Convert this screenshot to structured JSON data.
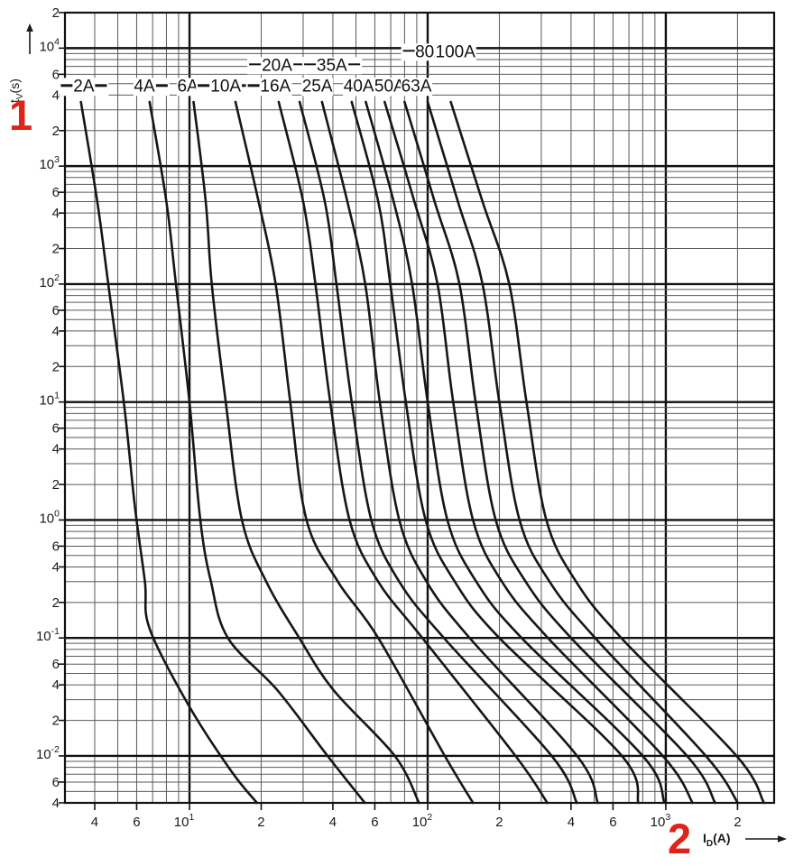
{
  "figure": {
    "marker_1": "1",
    "marker_2": "2",
    "y_axis_title": {
      "base": "t",
      "sub": "V",
      "unit": "(s)"
    },
    "x_axis_title": {
      "base": "I",
      "sub": "D",
      "unit": "(A)"
    },
    "colors": {
      "accent_red": "#df2318",
      "curve": "#161616",
      "grid_major": "#111111",
      "grid_minor": "#5a5a5a",
      "text": "#1a1a1a",
      "background": "#ffffff"
    }
  },
  "chart_data": {
    "type": "line",
    "xlabel": "I_D (A)",
    "ylabel": "t_V (s)",
    "x_scale": "log",
    "y_scale": "log",
    "xlim": [
      3,
      2850
    ],
    "ylim": [
      0.004,
      20000
    ],
    "grid": "full log-log grid, minor lines at mantissas 2-9, heavy lines at powers of 10",
    "legend_position": "labels at top of each curve",
    "x_ticks": [
      {
        "v": 4,
        "label": "4"
      },
      {
        "v": 6,
        "label": "6"
      },
      {
        "v": 10,
        "label": "10",
        "exp": "1"
      },
      {
        "v": 20,
        "label": "2"
      },
      {
        "v": 40,
        "label": "4"
      },
      {
        "v": 60,
        "label": "6"
      },
      {
        "v": 100,
        "label": "10",
        "exp": "2"
      },
      {
        "v": 200,
        "label": "2"
      },
      {
        "v": 400,
        "label": "4"
      },
      {
        "v": 600,
        "label": "6"
      },
      {
        "v": 1000,
        "label": "10",
        "exp": "3"
      },
      {
        "v": 2000,
        "label": "2"
      }
    ],
    "y_ticks": [
      {
        "v": 20000,
        "label": "2"
      },
      {
        "v": 10000,
        "label": "10",
        "exp": "4"
      },
      {
        "v": 6000,
        "label": "6"
      },
      {
        "v": 4000,
        "label": "4"
      },
      {
        "v": 2000,
        "label": "2"
      },
      {
        "v": 1000,
        "label": "10",
        "exp": "3"
      },
      {
        "v": 600,
        "label": "6"
      },
      {
        "v": 400,
        "label": "4"
      },
      {
        "v": 200,
        "label": "2"
      },
      {
        "v": 100,
        "label": "10",
        "exp": "2"
      },
      {
        "v": 60,
        "label": "6"
      },
      {
        "v": 40,
        "label": "4"
      },
      {
        "v": 20,
        "label": "2"
      },
      {
        "v": 10,
        "label": "10",
        "exp": "1"
      },
      {
        "v": 6,
        "label": "6"
      },
      {
        "v": 4,
        "label": "4"
      },
      {
        "v": 2,
        "label": "2"
      },
      {
        "v": 1,
        "label": "10",
        "exp": "0"
      },
      {
        "v": 0.6,
        "label": "6"
      },
      {
        "v": 0.4,
        "label": "4"
      },
      {
        "v": 0.2,
        "label": "2"
      },
      {
        "v": 0.1,
        "label": "10",
        "exp": "-1"
      },
      {
        "v": 0.06,
        "label": "6"
      },
      {
        "v": 0.04,
        "label": "4"
      },
      {
        "v": 0.02,
        "label": "2"
      },
      {
        "v": 0.01,
        "label": "10",
        "exp": "-2"
      },
      {
        "v": 0.006,
        "label": "6"
      },
      {
        "v": 0.004,
        "label": "4"
      }
    ],
    "series_point_format": [
      "current_A",
      "time_s"
    ],
    "series": [
      {
        "name": "2A",
        "label": "2A",
        "dash": "both",
        "label_pos": [
          3.6,
          4700
        ],
        "points": [
          [
            3.5,
            3500
          ],
          [
            4.1,
            500
          ],
          [
            4.56,
            100
          ],
          [
            5.3,
            10
          ],
          [
            5.9,
            1.3
          ],
          [
            6.5,
            0.3
          ],
          [
            6.8,
            0.12
          ],
          [
            9.9,
            0.027
          ],
          [
            15,
            0.0074
          ],
          [
            19.2,
            0.004
          ]
        ]
      },
      {
        "name": "4A",
        "label": "4A",
        "dash": "right",
        "label_pos": [
          6.9,
          4700
        ],
        "points": [
          [
            6.8,
            3500
          ],
          [
            8.0,
            500
          ],
          [
            8.77,
            100
          ],
          [
            10.0,
            10
          ],
          [
            11.1,
            1
          ],
          [
            12.3,
            0.3
          ],
          [
            14.5,
            0.1
          ],
          [
            23.4,
            0.036
          ],
          [
            38,
            0.01
          ],
          [
            54.5,
            0.004
          ]
        ]
      },
      {
        "name": "6A",
        "label": "6A",
        "dash": "right",
        "label_pos": [
          10.5,
          4700
        ],
        "points": [
          [
            10.4,
            3500
          ],
          [
            11.7,
            500
          ],
          [
            12.4,
            100
          ],
          [
            14.2,
            10
          ],
          [
            16.6,
            1
          ],
          [
            21,
            0.3
          ],
          [
            28.9,
            0.1
          ],
          [
            40.3,
            0.036
          ],
          [
            72.8,
            0.01
          ],
          [
            92,
            0.004
          ]
        ]
      },
      {
        "name": "10A",
        "label": "10A",
        "dash": "both",
        "label_pos": [
          14.2,
          4700
        ],
        "points": [
          [
            15.6,
            3500
          ],
          [
            19.5,
            500
          ],
          [
            23,
            100
          ],
          [
            26.5,
            10
          ],
          [
            31,
            1
          ],
          [
            42,
            0.3
          ],
          [
            62,
            0.1
          ],
          [
            118,
            0.01
          ],
          [
            155,
            0.004
          ]
        ]
      },
      {
        "name": "16A",
        "label": "16A",
        "dash": "left",
        "label_pos": [
          21.5,
          4700
        ],
        "points": [
          [
            23.7,
            3500
          ],
          [
            30,
            500
          ],
          [
            33.8,
            100
          ],
          [
            39,
            10
          ],
          [
            47,
            1
          ],
          [
            62,
            0.3
          ],
          [
            95,
            0.1
          ],
          [
            234,
            0.01
          ],
          [
            318,
            0.004
          ]
        ]
      },
      {
        "name": "20A",
        "label": "20A",
        "dash": "both",
        "label_pos": [
          23.3,
          7100
        ],
        "points": [
          [
            29,
            3500
          ],
          [
            37,
            500
          ],
          [
            41.4,
            100
          ],
          [
            48,
            10
          ],
          [
            58,
            1
          ],
          [
            76,
            0.3
          ],
          [
            117,
            0.1
          ],
          [
            332,
            0.01
          ],
          [
            423,
            0.004
          ]
        ]
      },
      {
        "name": "25A",
        "label": "25A",
        "dash": "none",
        "label_pos": [
          34.4,
          4700
        ],
        "points": [
          [
            36,
            3500
          ],
          [
            46,
            500
          ],
          [
            54.7,
            100
          ],
          [
            63,
            10
          ],
          [
            76,
            1
          ],
          [
            99,
            0.3
          ],
          [
            150,
            0.1
          ],
          [
            424,
            0.01
          ],
          [
            518,
            0.004
          ]
        ]
      },
      {
        "name": "35A",
        "label": "35A",
        "dash": "both",
        "label_pos": [
          39.6,
          7100
        ],
        "points": [
          [
            48,
            3500
          ],
          [
            62,
            500
          ],
          [
            69.7,
            100
          ],
          [
            81,
            10
          ],
          [
            98,
            1
          ],
          [
            130,
            0.3
          ],
          [
            200,
            0.1
          ],
          [
            654,
            0.01
          ],
          [
            767,
            0.004
          ]
        ]
      },
      {
        "name": "40A",
        "label": "40A",
        "dash": "none",
        "label_pos": [
          51.4,
          4700
        ],
        "points": [
          [
            55,
            3500
          ],
          [
            72,
            500
          ],
          [
            86,
            100
          ],
          [
            100,
            10
          ],
          [
            121,
            1
          ],
          [
            160,
            0.3
          ],
          [
            248,
            0.1
          ],
          [
            800,
            0.01
          ],
          [
            987,
            0.004
          ]
        ]
      },
      {
        "name": "50A",
        "label": "50A",
        "dash": "none",
        "label_pos": [
          69.2,
          4700
        ],
        "points": [
          [
            66,
            3500
          ],
          [
            88,
            500
          ],
          [
            110,
            100
          ],
          [
            128,
            10
          ],
          [
            155,
            1
          ],
          [
            205,
            0.3
          ],
          [
            320,
            0.1
          ],
          [
            971,
            0.01
          ],
          [
            1295,
            0.004
          ]
        ]
      },
      {
        "name": "63A",
        "label": "63A",
        "dash": "none",
        "label_pos": [
          89.7,
          4700
        ],
        "points": [
          [
            80,
            3500
          ],
          [
            107,
            500
          ],
          [
            136,
            100
          ],
          [
            159,
            10
          ],
          [
            193,
            1
          ],
          [
            258,
            0.3
          ],
          [
            400,
            0.1
          ],
          [
            1228,
            0.01
          ],
          [
            1611,
            0.004
          ]
        ]
      },
      {
        "name": "80A",
        "label": "80A",
        "dash": "left",
        "label_pos": [
          96.2,
          9300
        ],
        "points": [
          [
            100,
            3500
          ],
          [
            134,
            500
          ],
          [
            170,
            100
          ],
          [
            200,
            10
          ],
          [
            243,
            1
          ],
          [
            325,
            0.3
          ],
          [
            505,
            0.1
          ],
          [
            1473,
            0.01
          ],
          [
            2005,
            0.004
          ]
        ]
      },
      {
        "name": "100A",
        "label": "100A",
        "dash": "none",
        "label_pos": [
          130.7,
          9300
        ],
        "points": [
          [
            125,
            3500
          ],
          [
            170,
            500
          ],
          [
            220,
            100
          ],
          [
            260,
            10
          ],
          [
            315,
            1
          ],
          [
            420,
            0.3
          ],
          [
            650,
            0.1
          ],
          [
            1982,
            0.01
          ],
          [
            2582,
            0.004
          ]
        ]
      }
    ]
  }
}
